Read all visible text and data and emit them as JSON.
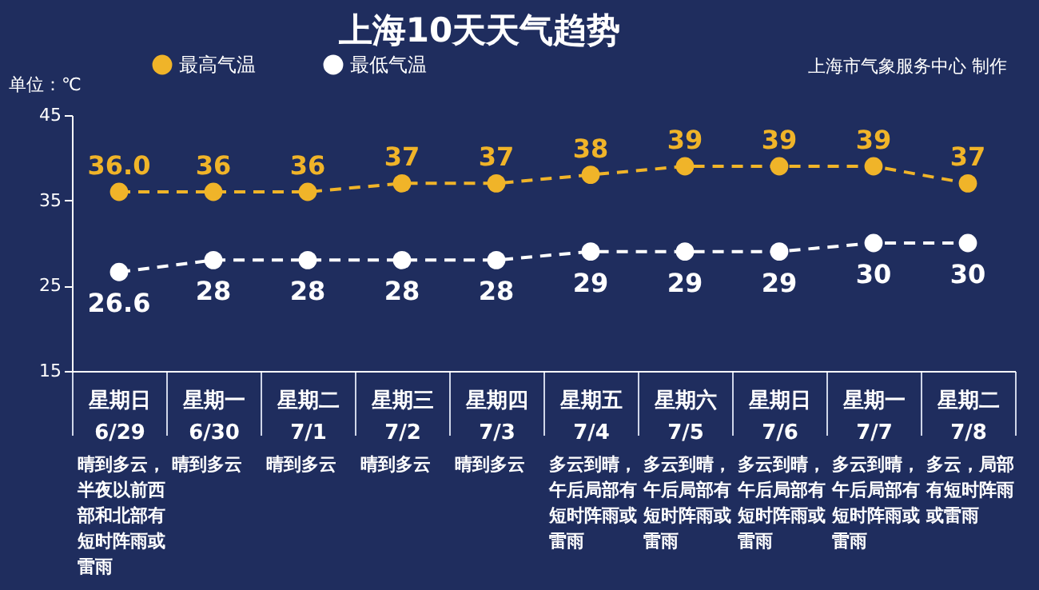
{
  "chart_data": {
    "type": "line",
    "title": "上海10天天气趋势",
    "ylabel": "单位：℃",
    "categories": [
      "星期日\n6/29",
      "星期一\n6/30",
      "星期二\n7/1",
      "星期三\n7/2",
      "星期四\n7/3",
      "星期五\n7/4",
      "星期六\n7/5",
      "星期日\n7/6",
      "星期一\n7/7",
      "星期二\n7/8"
    ],
    "series": [
      {
        "name": "最高气温",
        "color": "#f0b429",
        "values": [
          36.0,
          36,
          36,
          37,
          37,
          38,
          39,
          39,
          39,
          37
        ],
        "value_labels": [
          "36.0",
          "36",
          "36",
          "37",
          "37",
          "38",
          "39",
          "39",
          "39",
          "37"
        ]
      },
      {
        "name": "最低气温",
        "color": "#ffffff",
        "values": [
          26.6,
          28,
          28,
          28,
          28,
          29,
          29,
          29,
          30,
          30
        ],
        "value_labels": [
          "26.6",
          "28",
          "28",
          "28",
          "28",
          "29",
          "29",
          "29",
          "30",
          "30"
        ]
      }
    ],
    "ylim": [
      15,
      45
    ],
    "yticks": [
      15,
      25,
      35,
      45
    ],
    "marker": "circle",
    "line_style": "dashed",
    "legend": "top left",
    "annotations": [
      "上海市气象服务中心 制作",
      "晴到多云，半夜以前西部和北部有短时阵雨或雷雨",
      "晴到多云",
      "晴到多云",
      "晴到多云",
      "晴到多云",
      "多云到晴，午后局部有短时阵雨或雷雨",
      "多云到晴，午后局部有短时阵雨或雷雨",
      "多云到晴，午后局部有短时阵雨或雷雨",
      "多云到晴，午后局部有短时阵雨或雷雨",
      "多云，局部有短时阵雨或雷雨"
    ]
  }
}
